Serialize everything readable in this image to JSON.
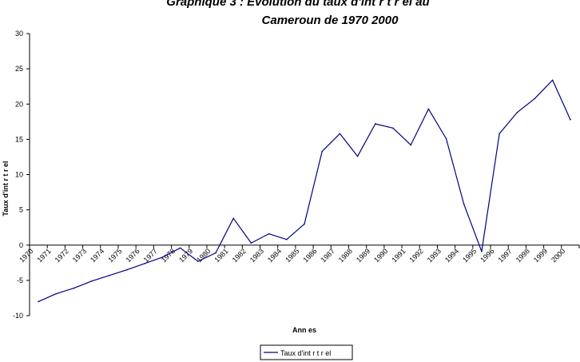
{
  "chart_data": {
    "type": "line",
    "title_line1": "Graphique 3 :  Evolution du taux d'int  r  t r  el au",
    "title_line2": "Cameroun de 1970     2000",
    "xlabel": "Ann  es",
    "ylabel": "Taux d'int  r  t r  el",
    "ylim": [
      -10,
      30
    ],
    "yticks": [
      -10,
      -5,
      0,
      5,
      10,
      15,
      20,
      25,
      30
    ],
    "grid": false,
    "legend": "bottom-center",
    "line_color": "#000080",
    "categories": [
      "1970",
      "1971",
      "1972",
      "1973",
      "1974",
      "1975",
      "1976",
      "1977",
      "1978",
      "1979",
      "1980",
      "1981",
      "1982",
      "1983",
      "1984",
      "1985",
      "1986",
      "1987",
      "1988",
      "1989",
      "1990",
      "1991",
      "1992",
      "1993",
      "1994",
      "1995",
      "1996",
      "1997",
      "1998",
      "1999",
      "2000"
    ],
    "series": [
      {
        "name": "Taux d'int  r  t r  el",
        "values": [
          -8.0,
          -6.9,
          -6.1,
          -5.1,
          -4.3,
          -3.5,
          -2.6,
          -1.7,
          -0.4,
          -2.3,
          -1.1,
          3.8,
          0.3,
          1.6,
          0.8,
          3.0,
          13.3,
          15.8,
          12.6,
          17.2,
          16.6,
          14.2,
          19.3,
          15.1,
          5.8,
          -0.9,
          15.8,
          18.8,
          20.8,
          23.4,
          17.8
        ]
      }
    ]
  }
}
